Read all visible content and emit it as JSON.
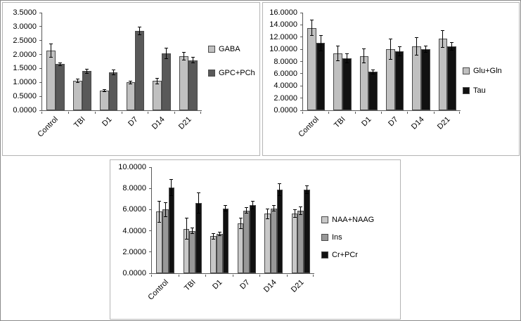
{
  "chart_data": [
    {
      "type": "bar",
      "title": "",
      "categories": [
        "Control",
        "TBI",
        "D1",
        "D7",
        "D14",
        "D21"
      ],
      "series": [
        {
          "name": "GABA",
          "color": "#c0c0c0",
          "values": [
            2.15,
            1.05,
            0.7,
            1.0,
            1.05,
            1.95
          ],
          "errors": [
            0.25,
            0.08,
            0.05,
            0.06,
            0.12,
            0.15
          ]
        },
        {
          "name": "GPC+PCh",
          "color": "#595959",
          "values": [
            1.65,
            1.4,
            1.35,
            2.85,
            2.05,
            1.8
          ],
          "errors": [
            0.07,
            0.08,
            0.1,
            0.15,
            0.2,
            0.12
          ]
        }
      ],
      "ylim": [
        0,
        3.5
      ],
      "ytick_step": 0.5,
      "ytick_decimals": 4,
      "grid": false,
      "legend_position": "right",
      "error_bars": true
    },
    {
      "type": "bar",
      "title": "",
      "categories": [
        "Control",
        "TBI",
        "D1",
        "D7",
        "D14",
        "D21"
      ],
      "series": [
        {
          "name": "Glu+Gln",
          "color": "#c0c0c0",
          "values": [
            13.5,
            9.3,
            8.9,
            10.0,
            10.5,
            11.7
          ],
          "errors": [
            1.3,
            1.3,
            1.2,
            1.7,
            1.5,
            1.4
          ]
        },
        {
          "name": "Tau",
          "color": "#111111",
          "values": [
            11.0,
            8.5,
            6.3,
            9.7,
            10.0,
            10.5
          ],
          "errors": [
            1.3,
            0.8,
            0.4,
            0.8,
            0.6,
            0.7
          ]
        }
      ],
      "ylim": [
        0,
        16
      ],
      "ytick_step": 2,
      "ytick_decimals": 4,
      "grid": false,
      "legend_position": "right",
      "error_bars": true
    },
    {
      "type": "bar",
      "title": "",
      "categories": [
        "Control",
        "TBI",
        "D1",
        "D7",
        "D14",
        "D21"
      ],
      "series": [
        {
          "name": "NAA+NAAG",
          "color": "#c8c8c8",
          "values": [
            5.8,
            4.2,
            3.5,
            4.7,
            5.6,
            5.6
          ],
          "errors": [
            1.0,
            1.0,
            0.3,
            0.5,
            0.5,
            0.4
          ]
        },
        {
          "name": "Ins",
          "color": "#989898",
          "values": [
            6.0,
            4.0,
            3.7,
            5.9,
            6.1,
            5.9
          ],
          "errors": [
            0.7,
            0.3,
            0.2,
            0.3,
            0.3,
            0.4
          ]
        },
        {
          "name": "Cr+PCr",
          "color": "#111111",
          "values": [
            8.1,
            6.6,
            6.1,
            6.4,
            7.9,
            7.9
          ],
          "errors": [
            0.8,
            1.0,
            0.3,
            0.4,
            0.6,
            0.4
          ]
        }
      ],
      "ylim": [
        0,
        10
      ],
      "ytick_step": 2,
      "ytick_decimals": 4,
      "grid": false,
      "legend_position": "right",
      "error_bars": true
    }
  ]
}
